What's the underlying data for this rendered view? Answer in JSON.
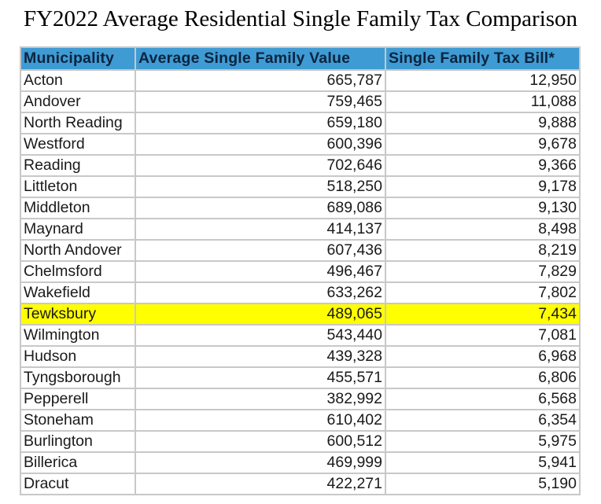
{
  "title": "FY2022 Average Residential Single Family Tax Comparison",
  "headers": [
    "Municipality",
    "Average Single Family Value",
    "Single Family Tax Bill*"
  ],
  "highlight_color": "#ffff00",
  "header_color": "#3f9bd3",
  "rows": [
    {
      "municipality": "Acton",
      "value": "665,787",
      "tax": "12,950",
      "highlight": false
    },
    {
      "municipality": "Andover",
      "value": "759,465",
      "tax": "11,088",
      "highlight": false
    },
    {
      "municipality": "North Reading",
      "value": "659,180",
      "tax": "9,888",
      "highlight": false
    },
    {
      "municipality": "Westford",
      "value": "600,396",
      "tax": "9,678",
      "highlight": false
    },
    {
      "municipality": "Reading",
      "value": "702,646",
      "tax": "9,366",
      "highlight": false
    },
    {
      "municipality": "Littleton",
      "value": "518,250",
      "tax": "9,178",
      "highlight": false
    },
    {
      "municipality": "Middleton",
      "value": "689,086",
      "tax": "9,130",
      "highlight": false
    },
    {
      "municipality": "Maynard",
      "value": "414,137",
      "tax": "8,498",
      "highlight": false
    },
    {
      "municipality": "North Andover",
      "value": "607,436",
      "tax": "8,219",
      "highlight": false
    },
    {
      "municipality": "Chelmsford",
      "value": "496,467",
      "tax": "7,829",
      "highlight": false
    },
    {
      "municipality": "Wakefield",
      "value": "633,262",
      "tax": "7,802",
      "highlight": false
    },
    {
      "municipality": "Tewksbury",
      "value": "489,065",
      "tax": "7,434",
      "highlight": true
    },
    {
      "municipality": "Wilmington",
      "value": "543,440",
      "tax": "7,081",
      "highlight": false
    },
    {
      "municipality": "Hudson",
      "value": "439,328",
      "tax": "6,968",
      "highlight": false
    },
    {
      "municipality": "Tyngsborough",
      "value": "455,571",
      "tax": "6,806",
      "highlight": false
    },
    {
      "municipality": "Pepperell",
      "value": "382,992",
      "tax": "6,568",
      "highlight": false
    },
    {
      "municipality": "Stoneham",
      "value": "610,402",
      "tax": "6,354",
      "highlight": false
    },
    {
      "municipality": "Burlington",
      "value": "600,512",
      "tax": "5,975",
      "highlight": false
    },
    {
      "municipality": "Billerica",
      "value": "469,999",
      "tax": "5,941",
      "highlight": false
    },
    {
      "municipality": "Dracut",
      "value": "422,271",
      "tax": "5,190",
      "highlight": false
    }
  ]
}
